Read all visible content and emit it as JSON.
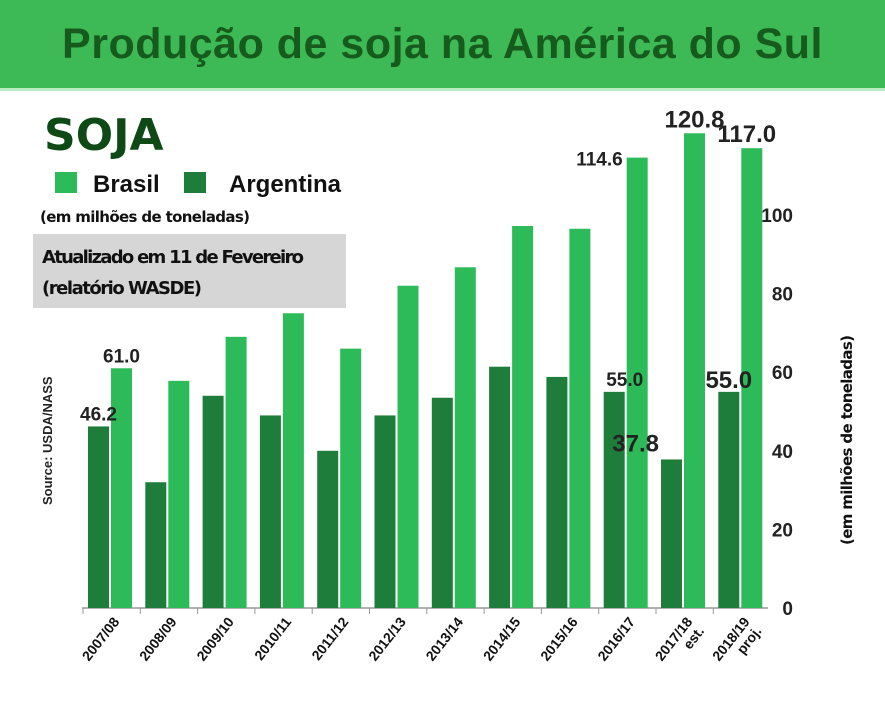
{
  "header": {
    "title": "Produção de soja na América do Sul"
  },
  "chart_data": {
    "type": "bar",
    "title": "SOJA",
    "subtitle": "(em milhões de toneladas)",
    "note": [
      "Atualizado em 11 de Fevereiro",
      "(relatório WASDE)"
    ],
    "source": "Source: USDA/NASS",
    "ylabel": "(em milhões de toneladas)",
    "ylim": [
      0,
      125
    ],
    "yticks": [
      0,
      20,
      40,
      60,
      80,
      100
    ],
    "grid": false,
    "legend_placement": "top-left",
    "categories": [
      "2007/08",
      "2008/09",
      "2009/10",
      "2010/11",
      "2011/12",
      "2012/13",
      "2013/14",
      "2014/15",
      "2015/16",
      "2016/17",
      "2017/18 est.",
      "2018/19 proj."
    ],
    "category_lines": [
      [
        "2007/08"
      ],
      [
        "2008/09"
      ],
      [
        "2009/10"
      ],
      [
        "2010/11"
      ],
      [
        "2011/12"
      ],
      [
        "2012/13"
      ],
      [
        "2013/14"
      ],
      [
        "2014/15"
      ],
      [
        "2015/16"
      ],
      [
        "2016/17"
      ],
      [
        "2017/18",
        "est."
      ],
      [
        "2018/19",
        "proj."
      ]
    ],
    "series": [
      {
        "name": "Argentina",
        "color": "#1e7d3a",
        "values": [
          46.2,
          32,
          54,
          49,
          40,
          49,
          53.5,
          61.4,
          58.8,
          55.0,
          37.8,
          55.0
        ],
        "labels": {
          "0": "46.2",
          "9": "55.0",
          "10": "37.8",
          "11": "55.0"
        }
      },
      {
        "name": "Brasil",
        "color": "#2dbb5a",
        "values": [
          61.0,
          57.8,
          69,
          75,
          66,
          82,
          86.7,
          97.2,
          96.5,
          114.6,
          120.8,
          117.0
        ],
        "labels": {
          "0": "61.0",
          "9": "114.6",
          "10": "120.8",
          "11": "117.0"
        }
      }
    ]
  }
}
